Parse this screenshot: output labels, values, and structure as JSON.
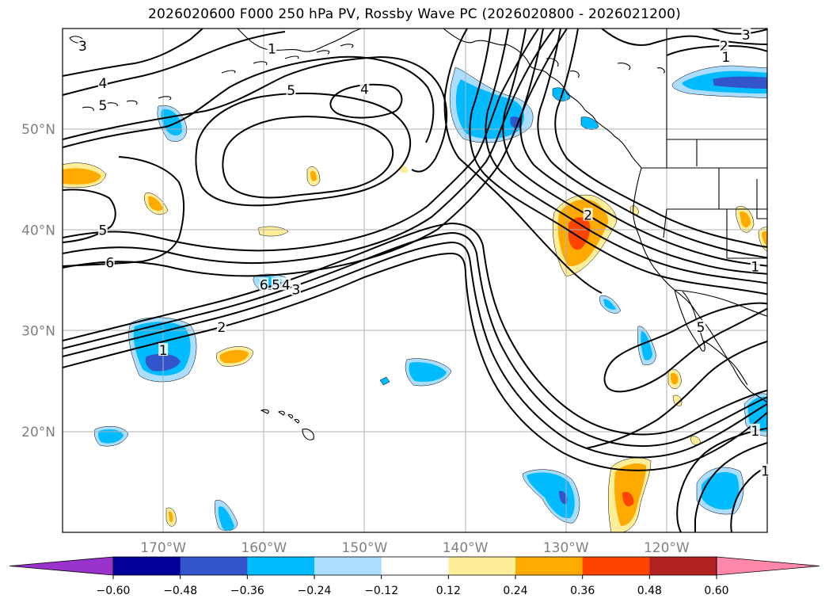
{
  "title": "2026020600 F000 250 hPa PV, Rossby Wave PC (2026020800 - 2026021200)",
  "map": {
    "projection": "PlateCarree",
    "lon_range": [
      -180,
      -110
    ],
    "lat_range": [
      10,
      60
    ],
    "lon_ticks": [
      {
        "lon": -170,
        "label": "170°W"
      },
      {
        "lon": -160,
        "label": "160°W"
      },
      {
        "lon": -150,
        "label": "150°W"
      },
      {
        "lon": -140,
        "label": "140°W"
      },
      {
        "lon": -130,
        "label": "130°W"
      },
      {
        "lon": -120,
        "label": "120°W"
      }
    ],
    "lat_ticks": [
      {
        "lat": 20,
        "label": "20°N"
      },
      {
        "lat": 30,
        "label": "30°N"
      },
      {
        "lat": 40,
        "label": "40°N"
      },
      {
        "lat": 50,
        "label": "50°N"
      }
    ],
    "contour_labels": [
      {
        "text": "3",
        "lon": -178.0,
        "lat": 58.2
      },
      {
        "text": "4",
        "lon": -176.0,
        "lat": 54.5
      },
      {
        "text": "5",
        "lon": -176.0,
        "lat": 52.3
      },
      {
        "text": "1",
        "lon": -159.2,
        "lat": 57.9
      },
      {
        "text": "5",
        "lon": -157.3,
        "lat": 53.8
      },
      {
        "text": "4",
        "lon": -150.0,
        "lat": 53.9
      },
      {
        "text": "5",
        "lon": -176.0,
        "lat": 39.9
      },
      {
        "text": "6",
        "lon": -175.3,
        "lat": 36.7
      },
      {
        "text": "6",
        "lon": -160.0,
        "lat": 34.5
      },
      {
        "text": "5",
        "lon": -158.8,
        "lat": 34.5
      },
      {
        "text": "4",
        "lon": -157.8,
        "lat": 34.5
      },
      {
        "text": "3",
        "lon": -156.8,
        "lat": 34.0
      },
      {
        "text": "2",
        "lon": -164.2,
        "lat": 30.3
      },
      {
        "text": "1",
        "lon": -170.0,
        "lat": 28.0
      },
      {
        "text": "2",
        "lon": -127.8,
        "lat": 41.4
      },
      {
        "text": "5",
        "lon": -116.6,
        "lat": 30.3
      },
      {
        "text": "1",
        "lon": -111.2,
        "lat": 36.3
      },
      {
        "text": "1",
        "lon": -111.2,
        "lat": 20.0
      },
      {
        "text": "1",
        "lon": -110.2,
        "lat": 16.0
      },
      {
        "text": "2",
        "lon": -114.3,
        "lat": 58.2
      },
      {
        "text": "1",
        "lon": -114.1,
        "lat": 57.1
      },
      {
        "text": "3",
        "lon": -112.1,
        "lat": 59.3
      }
    ]
  },
  "colorbar": {
    "ticks": [
      "−0.60",
      "−0.48",
      "−0.36",
      "−0.24",
      "−0.12",
      "0.12",
      "0.24",
      "0.36",
      "0.48",
      "0.60"
    ],
    "colors": [
      "#9933cc",
      "#000099",
      "#3355cc",
      "#00bbff",
      "#aaddff",
      "#ffffff",
      "#ffee99",
      "#ffaa00",
      "#ff4400",
      "#b22222",
      "#ff88aa"
    ]
  }
}
